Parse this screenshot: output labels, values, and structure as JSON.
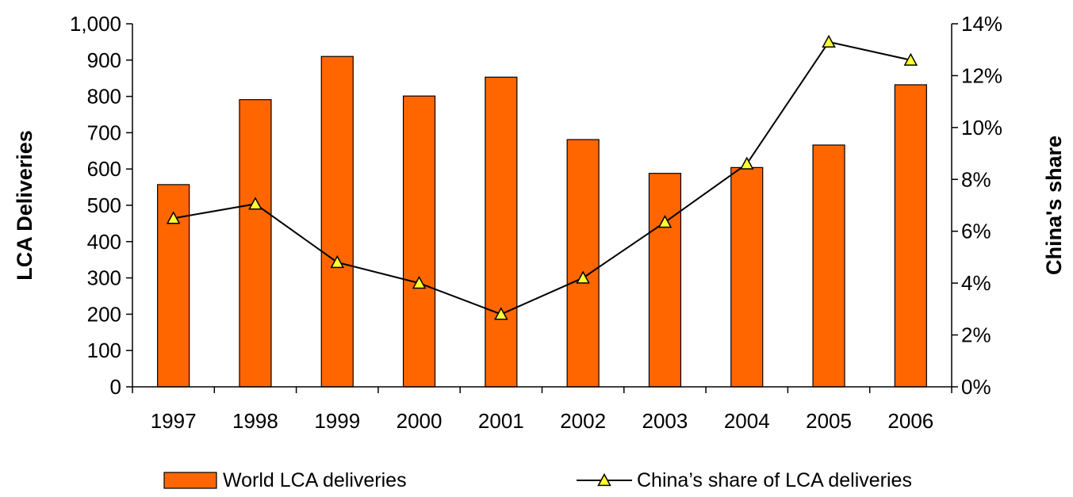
{
  "chart_data": {
    "type": "bar+line",
    "categories": [
      "1997",
      "1998",
      "1999",
      "2000",
      "2001",
      "2002",
      "2003",
      "2004",
      "2005",
      "2006"
    ],
    "series": [
      {
        "name": "World LCA deliveries",
        "type": "bar",
        "axis": "left",
        "values": [
          557,
          791,
          910,
          801,
          853,
          681,
          588,
          604,
          666,
          832
        ],
        "color": "#FF6600"
      },
      {
        "name": "China's share of LCA deliveries",
        "type": "line",
        "axis": "right",
        "values": [
          6.5,
          7.05,
          4.8,
          4.0,
          2.8,
          4.2,
          6.35,
          8.6,
          13.3,
          12.6
        ],
        "color": "#000000",
        "marker_color": "#FFFF33"
      }
    ],
    "ylabel_left": "LCA Deliveries",
    "ylabel_right": "China's share",
    "ylim_left": [
      0,
      1000
    ],
    "ylim_right": [
      0,
      14
    ],
    "yticks_left": [
      "0",
      "100",
      "200",
      "300",
      "400",
      "500",
      "600",
      "700",
      "800",
      "900",
      "1,000"
    ],
    "yticks_right": [
      "0%",
      "2%",
      "4%",
      "6%",
      "8%",
      "10%",
      "12%",
      "14%"
    ],
    "legend": {
      "position": "bottom",
      "bar_label": "World LCA deliveries",
      "line_label": "China’s share of LCA deliveries"
    }
  }
}
